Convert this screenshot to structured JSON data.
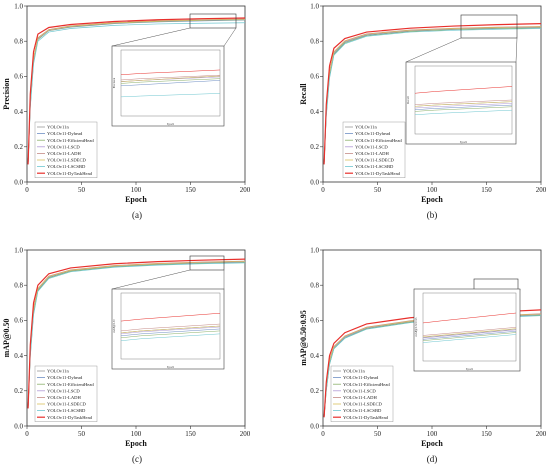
{
  "series_names": [
    "YOLOv11n",
    "YOLOv11-Dyhead",
    "YOLOv11-EfficientHead",
    "YOLOv11-LSCD",
    "YOLOv11-LADH",
    "YOLOv11-LSDECD",
    "YOLOv11-LSCSBD",
    "YOLOv11-DyTaskHead"
  ],
  "series_colors": [
    "#9a9a9a",
    "#6f8fc4",
    "#8bb06a",
    "#b09ad6",
    "#c48a86",
    "#d8c05e",
    "#6ec7d0",
    "#e8302c"
  ],
  "chart_data": [
    {
      "type": "line",
      "caption": "(a)",
      "xlabel": "Epoch",
      "ylabel": "Precision",
      "xlim": [
        0,
        200
      ],
      "ylim": [
        0,
        1.0
      ],
      "xticks": [
        "0",
        "50",
        "100",
        "150",
        "200"
      ],
      "yticks": [
        "0.0",
        "0.2",
        "0.4",
        "0.6",
        "0.8",
        "1.0"
      ],
      "legend_position": "bottom-left",
      "inset": {
        "xrange": [
          150,
          200
        ],
        "position": "center-right",
        "xlabel": "Epoch",
        "ylabel": "Precision"
      },
      "series": [
        {
          "name": "YOLOv11n",
          "x": [
            1,
            3,
            6,
            10,
            20,
            40,
            80,
            120,
            160,
            200
          ],
          "y": [
            0.1,
            0.45,
            0.7,
            0.82,
            0.865,
            0.885,
            0.905,
            0.915,
            0.92,
            0.925
          ]
        },
        {
          "name": "YOLOv11-Dyhead",
          "x": [
            1,
            3,
            6,
            10,
            20,
            40,
            80,
            120,
            160,
            200
          ],
          "y": [
            0.1,
            0.44,
            0.69,
            0.81,
            0.86,
            0.88,
            0.9,
            0.91,
            0.915,
            0.92
          ]
        },
        {
          "name": "YOLOv11-EfficientHead",
          "x": [
            1,
            3,
            6,
            10,
            20,
            40,
            80,
            120,
            160,
            200
          ],
          "y": [
            0.1,
            0.43,
            0.68,
            0.81,
            0.86,
            0.882,
            0.902,
            0.912,
            0.918,
            0.922
          ]
        },
        {
          "name": "YOLOv11-LSCD",
          "x": [
            1,
            3,
            6,
            10,
            20,
            40,
            80,
            120,
            160,
            200
          ],
          "y": [
            0.1,
            0.44,
            0.69,
            0.815,
            0.862,
            0.884,
            0.904,
            0.914,
            0.92,
            0.924
          ]
        },
        {
          "name": "YOLOv11-LADH",
          "x": [
            1,
            3,
            6,
            10,
            20,
            40,
            80,
            120,
            160,
            200
          ],
          "y": [
            0.1,
            0.46,
            0.7,
            0.82,
            0.866,
            0.887,
            0.906,
            0.916,
            0.922,
            0.926
          ]
        },
        {
          "name": "YOLOv11-LSDECD",
          "x": [
            1,
            3,
            6,
            10,
            20,
            40,
            80,
            120,
            160,
            200
          ],
          "y": [
            0.1,
            0.45,
            0.7,
            0.818,
            0.864,
            0.885,
            0.904,
            0.914,
            0.92,
            0.925
          ]
        },
        {
          "name": "YOLOv11-LSCSBD",
          "x": [
            1,
            3,
            6,
            10,
            20,
            40,
            80,
            120,
            160,
            200
          ],
          "y": [
            0.1,
            0.42,
            0.67,
            0.8,
            0.852,
            0.872,
            0.89,
            0.898,
            0.902,
            0.905
          ]
        },
        {
          "name": "YOLOv11-DyTaskHead",
          "x": [
            1,
            3,
            6,
            10,
            20,
            40,
            80,
            120,
            160,
            200
          ],
          "y": [
            0.1,
            0.5,
            0.74,
            0.84,
            0.878,
            0.895,
            0.912,
            0.922,
            0.928,
            0.932
          ]
        }
      ]
    },
    {
      "type": "line",
      "caption": "(b)",
      "xlabel": "Epoch",
      "ylabel": "Recall",
      "xlim": [
        0,
        200
      ],
      "ylim": [
        0,
        1.0
      ],
      "xticks": [
        "0",
        "50",
        "100",
        "150",
        "200"
      ],
      "yticks": [
        "0.0",
        "0.2",
        "0.4",
        "0.6",
        "0.8",
        "1.0"
      ],
      "legend_position": "bottom-right",
      "inset": {
        "xrange": [
          150,
          200
        ],
        "position": "center-right",
        "xlabel": "Epoch",
        "ylabel": "Recall"
      },
      "series": [
        {
          "name": "YOLOv11n",
          "x": [
            1,
            3,
            6,
            10,
            20,
            40,
            80,
            120,
            160,
            200
          ],
          "y": [
            0.1,
            0.4,
            0.62,
            0.74,
            0.8,
            0.84,
            0.862,
            0.872,
            0.878,
            0.882
          ]
        },
        {
          "name": "YOLOv11-Dyhead",
          "x": [
            1,
            3,
            6,
            10,
            20,
            40,
            80,
            120,
            160,
            200
          ],
          "y": [
            0.1,
            0.39,
            0.61,
            0.73,
            0.795,
            0.835,
            0.858,
            0.868,
            0.874,
            0.878
          ]
        },
        {
          "name": "YOLOv11-EfficientHead",
          "x": [
            1,
            3,
            6,
            10,
            20,
            40,
            80,
            120,
            160,
            200
          ],
          "y": [
            0.1,
            0.38,
            0.6,
            0.725,
            0.79,
            0.832,
            0.856,
            0.866,
            0.872,
            0.876
          ]
        },
        {
          "name": "YOLOv11-LSCD",
          "x": [
            1,
            3,
            6,
            10,
            20,
            40,
            80,
            120,
            160,
            200
          ],
          "y": [
            0.1,
            0.4,
            0.62,
            0.735,
            0.798,
            0.838,
            0.86,
            0.87,
            0.876,
            0.88
          ]
        },
        {
          "name": "YOLOv11-LADH",
          "x": [
            1,
            3,
            6,
            10,
            20,
            40,
            80,
            120,
            160,
            200
          ],
          "y": [
            0.1,
            0.41,
            0.63,
            0.74,
            0.802,
            0.842,
            0.864,
            0.874,
            0.88,
            0.884
          ]
        },
        {
          "name": "YOLOv11-LSDECD",
          "x": [
            1,
            3,
            6,
            10,
            20,
            40,
            80,
            120,
            160,
            200
          ],
          "y": [
            0.1,
            0.4,
            0.62,
            0.738,
            0.8,
            0.84,
            0.862,
            0.872,
            0.878,
            0.882
          ]
        },
        {
          "name": "YOLOv11-LSCSBD",
          "x": [
            1,
            3,
            6,
            10,
            20,
            40,
            80,
            120,
            160,
            200
          ],
          "y": [
            0.1,
            0.37,
            0.59,
            0.72,
            0.785,
            0.828,
            0.852,
            0.862,
            0.868,
            0.872
          ]
        },
        {
          "name": "YOLOv11-DyTaskHead",
          "x": [
            1,
            3,
            6,
            10,
            20,
            40,
            80,
            120,
            160,
            200
          ],
          "y": [
            0.1,
            0.44,
            0.66,
            0.76,
            0.815,
            0.852,
            0.874,
            0.886,
            0.894,
            0.9
          ]
        }
      ]
    },
    {
      "type": "line",
      "caption": "(c)",
      "xlabel": "Epoch",
      "ylabel": "mAP@0.50",
      "xlim": [
        0,
        200
      ],
      "ylim": [
        0,
        1.0
      ],
      "xticks": [
        "0",
        "50",
        "100",
        "150",
        "200"
      ],
      "yticks": [
        "0.0",
        "0.2",
        "0.4",
        "0.6",
        "0.8",
        "1.0"
      ],
      "legend_position": "bottom-left",
      "inset": {
        "xrange": [
          150,
          200
        ],
        "position": "center-right",
        "xlabel": "Epoch",
        "ylabel": "mAP@0.50"
      },
      "series": [
        {
          "name": "YOLOv11n",
          "x": [
            1,
            3,
            6,
            10,
            20,
            40,
            80,
            120,
            160,
            200
          ],
          "y": [
            0.1,
            0.42,
            0.66,
            0.78,
            0.85,
            0.885,
            0.91,
            0.922,
            0.93,
            0.935
          ]
        },
        {
          "name": "YOLOv11-Dyhead",
          "x": [
            1,
            3,
            6,
            10,
            20,
            40,
            80,
            120,
            160,
            200
          ],
          "y": [
            0.1,
            0.41,
            0.65,
            0.775,
            0.845,
            0.882,
            0.907,
            0.919,
            0.927,
            0.932
          ]
        },
        {
          "name": "YOLOv11-EfficientHead",
          "x": [
            1,
            3,
            6,
            10,
            20,
            40,
            80,
            120,
            160,
            200
          ],
          "y": [
            0.1,
            0.4,
            0.64,
            0.77,
            0.842,
            0.88,
            0.905,
            0.917,
            0.925,
            0.93
          ]
        },
        {
          "name": "YOLOv11-LSCD",
          "x": [
            1,
            3,
            6,
            10,
            20,
            40,
            80,
            120,
            160,
            200
          ],
          "y": [
            0.1,
            0.42,
            0.66,
            0.778,
            0.848,
            0.884,
            0.909,
            0.921,
            0.929,
            0.934
          ]
        },
        {
          "name": "YOLOv11-LADH",
          "x": [
            1,
            3,
            6,
            10,
            20,
            40,
            80,
            120,
            160,
            200
          ],
          "y": [
            0.1,
            0.43,
            0.67,
            0.782,
            0.852,
            0.887,
            0.912,
            0.924,
            0.932,
            0.937
          ]
        },
        {
          "name": "YOLOv11-LSDECD",
          "x": [
            1,
            3,
            6,
            10,
            20,
            40,
            80,
            120,
            160,
            200
          ],
          "y": [
            0.1,
            0.42,
            0.66,
            0.78,
            0.85,
            0.885,
            0.91,
            0.922,
            0.93,
            0.935
          ]
        },
        {
          "name": "YOLOv11-LSCSBD",
          "x": [
            1,
            3,
            6,
            10,
            20,
            40,
            80,
            120,
            160,
            200
          ],
          "y": [
            0.1,
            0.39,
            0.63,
            0.765,
            0.838,
            0.876,
            0.902,
            0.914,
            0.922,
            0.927
          ]
        },
        {
          "name": "YOLOv11-DyTaskHead",
          "x": [
            1,
            3,
            6,
            10,
            20,
            40,
            80,
            120,
            160,
            200
          ],
          "y": [
            0.1,
            0.46,
            0.7,
            0.8,
            0.865,
            0.898,
            0.922,
            0.934,
            0.942,
            0.948
          ]
        }
      ]
    },
    {
      "type": "line",
      "caption": "(d)",
      "xlabel": "Epoch",
      "ylabel": "mAP@0.50:0.95",
      "xlim": [
        0,
        200
      ],
      "ylim": [
        0,
        1.0
      ],
      "xticks": [
        "0",
        "50",
        "100",
        "150",
        "200"
      ],
      "yticks": [
        "0.0",
        "0.2",
        "0.4",
        "0.6",
        "0.8",
        "1.0"
      ],
      "legend_position": "bottom-left",
      "inset": {
        "xrange": [
          150,
          200
        ],
        "position": "center-right",
        "xlabel": "Epoch",
        "ylabel": "mAP@0.50:0.95"
      },
      "series": [
        {
          "name": "YOLOv11n",
          "x": [
            1,
            3,
            6,
            10,
            20,
            40,
            80,
            120,
            160,
            200
          ],
          "y": [
            0.05,
            0.22,
            0.37,
            0.45,
            0.51,
            0.56,
            0.595,
            0.615,
            0.625,
            0.635
          ]
        },
        {
          "name": "YOLOv11-Dyhead",
          "x": [
            1,
            3,
            6,
            10,
            20,
            40,
            80,
            120,
            160,
            200
          ],
          "y": [
            0.05,
            0.21,
            0.36,
            0.445,
            0.505,
            0.556,
            0.592,
            0.612,
            0.622,
            0.632
          ]
        },
        {
          "name": "YOLOv11-EfficientHead",
          "x": [
            1,
            3,
            6,
            10,
            20,
            40,
            80,
            120,
            160,
            200
          ],
          "y": [
            0.05,
            0.2,
            0.35,
            0.44,
            0.5,
            0.553,
            0.59,
            0.61,
            0.62,
            0.63
          ]
        },
        {
          "name": "YOLOv11-LSCD",
          "x": [
            1,
            3,
            6,
            10,
            20,
            40,
            80,
            120,
            160,
            200
          ],
          "y": [
            0.05,
            0.22,
            0.37,
            0.448,
            0.508,
            0.558,
            0.594,
            0.614,
            0.624,
            0.634
          ]
        },
        {
          "name": "YOLOv11-LADH",
          "x": [
            1,
            3,
            6,
            10,
            20,
            40,
            80,
            120,
            160,
            200
          ],
          "y": [
            0.05,
            0.23,
            0.38,
            0.452,
            0.512,
            0.562,
            0.598,
            0.618,
            0.628,
            0.638
          ]
        },
        {
          "name": "YOLOv11-LSDECD",
          "x": [
            1,
            3,
            6,
            10,
            20,
            40,
            80,
            120,
            160,
            200
          ],
          "y": [
            0.05,
            0.22,
            0.37,
            0.45,
            0.51,
            0.56,
            0.596,
            0.616,
            0.626,
            0.636
          ]
        },
        {
          "name": "YOLOv11-LSCSBD",
          "x": [
            1,
            3,
            6,
            10,
            20,
            40,
            80,
            120,
            160,
            200
          ],
          "y": [
            0.05,
            0.2,
            0.35,
            0.438,
            0.498,
            0.55,
            0.587,
            0.607,
            0.617,
            0.627
          ]
        },
        {
          "name": "YOLOv11-DyTaskHead",
          "x": [
            1,
            3,
            6,
            10,
            20,
            40,
            80,
            120,
            160,
            200
          ],
          "y": [
            0.05,
            0.25,
            0.4,
            0.47,
            0.53,
            0.58,
            0.615,
            0.635,
            0.648,
            0.66
          ]
        }
      ]
    }
  ]
}
